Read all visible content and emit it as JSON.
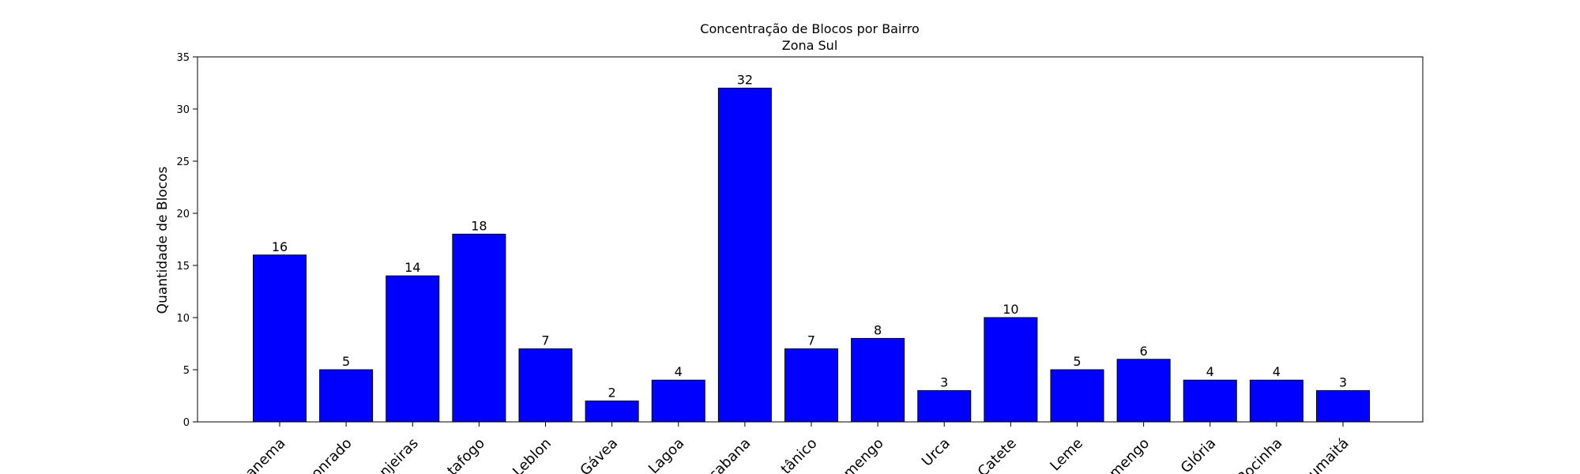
{
  "chart_data": {
    "type": "bar",
    "title": "Concentração de Blocos por Bairro",
    "subtitle": "Zona Sul",
    "xlabel": "",
    "ylabel": "Quantidade de Blocos",
    "ylim": [
      0,
      35
    ],
    "yticks": [
      0,
      5,
      10,
      15,
      20,
      25,
      30,
      35
    ],
    "grid": false,
    "legend": "none",
    "bar_color": "#0000ff",
    "bar_edge_color": "#000000",
    "categories": [
      "anema",
      "onrado",
      "njeiras",
      "tafogo",
      "Leblon",
      "Gávea",
      "Lagoa",
      "cabana",
      "tânico",
      "mengo",
      "Urca",
      "Catete",
      "Leme",
      "mengo",
      "Glória",
      "Rocinha",
      "umaitá"
    ],
    "values": [
      16,
      5,
      14,
      18,
      7,
      2,
      4,
      32,
      7,
      8,
      3,
      10,
      5,
      6,
      4,
      4,
      3
    ]
  }
}
